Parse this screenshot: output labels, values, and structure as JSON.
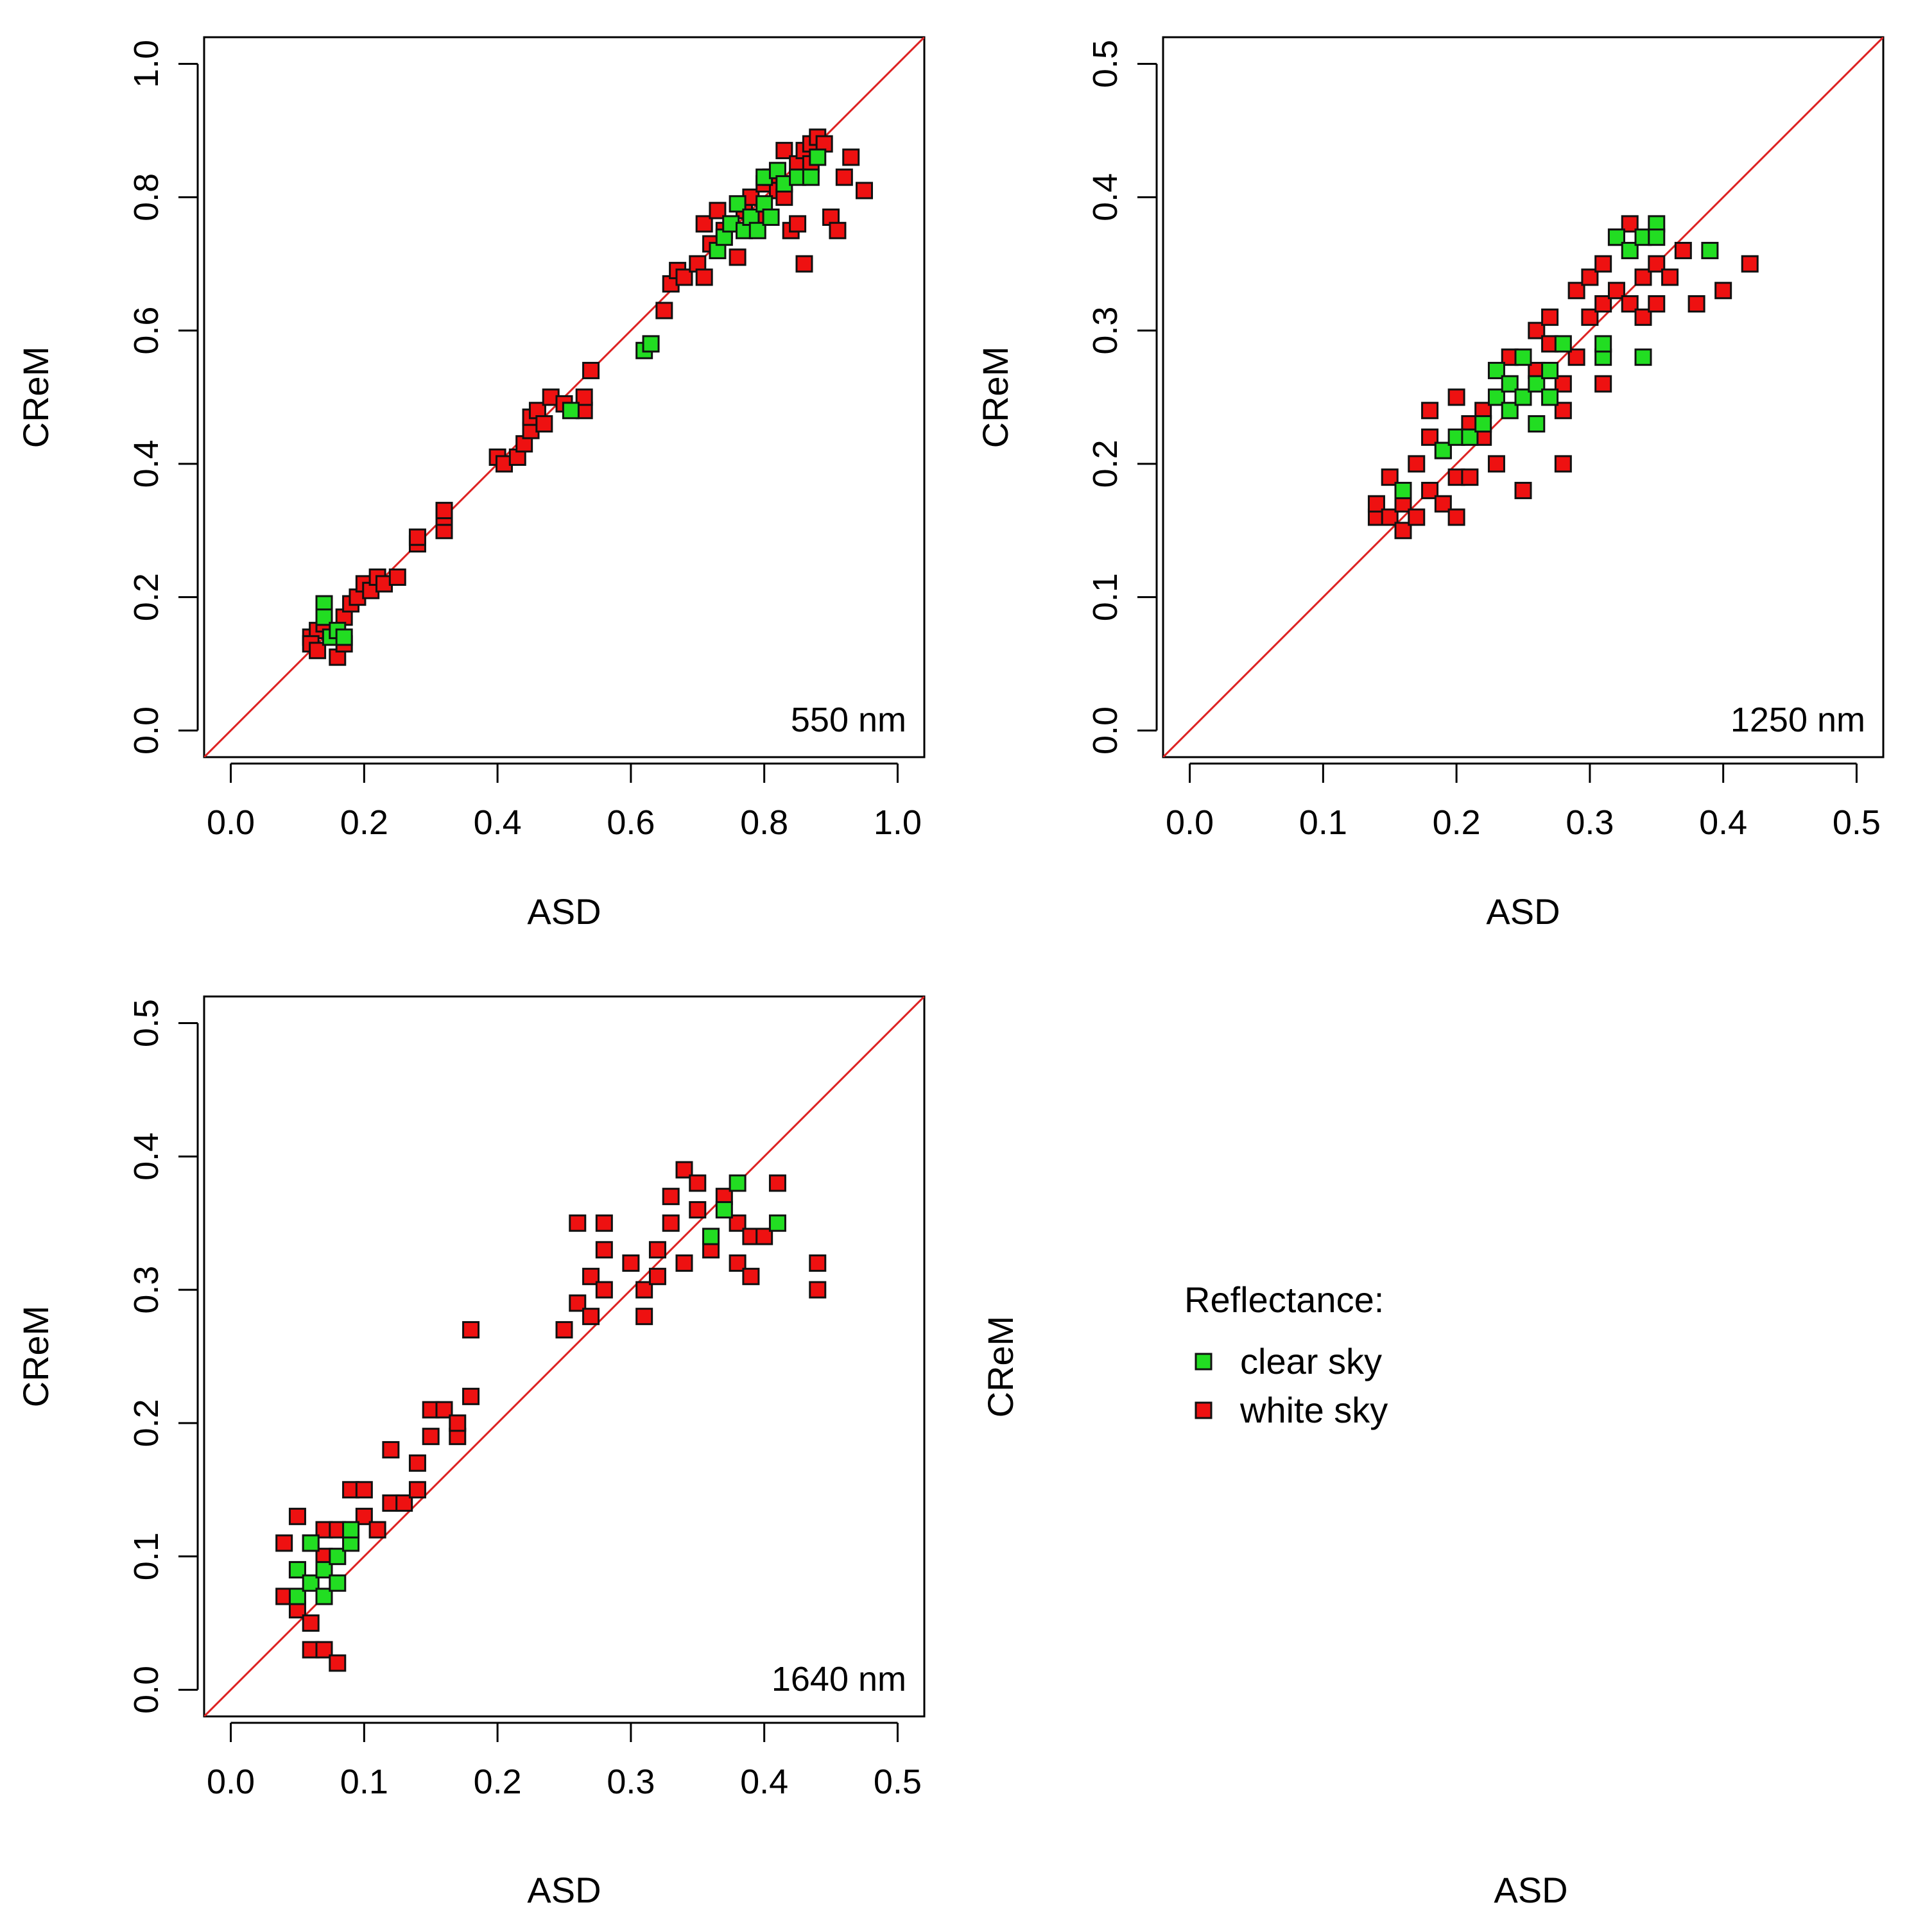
{
  "colors": {
    "clear_sky": "#22dd22",
    "white_sky": "#ee1111",
    "identity_line": "#dd2222",
    "marker_edge": "#111111"
  },
  "legend": {
    "title": "Reflectance:",
    "items": [
      {
        "label": "clear sky",
        "color": "#22dd22"
      },
      {
        "label": "white sky",
        "color": "#ee1111"
      }
    ]
  },
  "empty_panel": {
    "xlabel": "ASD",
    "ylabel": "CReM"
  },
  "chart_data": [
    {
      "type": "scatter",
      "panel_label": "550 nm",
      "xlabel": "ASD",
      "ylabel": "CReM",
      "xlim": [
        -0.04,
        1.04
      ],
      "ylim": [
        -0.04,
        1.04
      ],
      "xticks": [
        0.0,
        0.2,
        0.4,
        0.6,
        0.8,
        1.0
      ],
      "yticks": [
        0.0,
        0.2,
        0.4,
        0.6,
        0.8,
        1.0
      ],
      "tick_labels": [
        "0.0",
        "0.2",
        "0.4",
        "0.6",
        "0.8",
        "1.0"
      ],
      "identity_line": true,
      "series": [
        {
          "name": "white sky",
          "points": [
            [
              0.12,
              0.14
            ],
            [
              0.13,
              0.15
            ],
            [
              0.12,
              0.13
            ],
            [
              0.14,
              0.16
            ],
            [
              0.13,
              0.12
            ],
            [
              0.15,
              0.14
            ],
            [
              0.16,
              0.11
            ],
            [
              0.17,
              0.13
            ],
            [
              0.17,
              0.17
            ],
            [
              0.18,
              0.19
            ],
            [
              0.19,
              0.2
            ],
            [
              0.2,
              0.22
            ],
            [
              0.21,
              0.21
            ],
            [
              0.22,
              0.23
            ],
            [
              0.23,
              0.22
            ],
            [
              0.25,
              0.23
            ],
            [
              0.28,
              0.28
            ],
            [
              0.28,
              0.29
            ],
            [
              0.32,
              0.3
            ],
            [
              0.32,
              0.32
            ],
            [
              0.32,
              0.33
            ],
            [
              0.4,
              0.41
            ],
            [
              0.41,
              0.4
            ],
            [
              0.43,
              0.41
            ],
            [
              0.44,
              0.43
            ],
            [
              0.45,
              0.45
            ],
            [
              0.45,
              0.47
            ],
            [
              0.46,
              0.48
            ],
            [
              0.47,
              0.46
            ],
            [
              0.48,
              0.5
            ],
            [
              0.5,
              0.49
            ],
            [
              0.53,
              0.48
            ],
            [
              0.53,
              0.5
            ],
            [
              0.54,
              0.54
            ],
            [
              0.65,
              0.63
            ],
            [
              0.66,
              0.67
            ],
            [
              0.67,
              0.69
            ],
            [
              0.68,
              0.68
            ],
            [
              0.7,
              0.7
            ],
            [
              0.71,
              0.68
            ],
            [
              0.71,
              0.76
            ],
            [
              0.72,
              0.73
            ],
            [
              0.73,
              0.78
            ],
            [
              0.74,
              0.75
            ],
            [
              0.76,
              0.71
            ],
            [
              0.77,
              0.78
            ],
            [
              0.78,
              0.8
            ],
            [
              0.79,
              0.77
            ],
            [
              0.8,
              0.82
            ],
            [
              0.81,
              0.83
            ],
            [
              0.82,
              0.81
            ],
            [
              0.83,
              0.87
            ],
            [
              0.83,
              0.8
            ],
            [
              0.84,
              0.75
            ],
            [
              0.85,
              0.76
            ],
            [
              0.85,
              0.85
            ],
            [
              0.86,
              0.87
            ],
            [
              0.87,
              0.88
            ],
            [
              0.87,
              0.85
            ],
            [
              0.88,
              0.89
            ],
            [
              0.89,
              0.88
            ],
            [
              0.86,
              0.7
            ],
            [
              0.9,
              0.77
            ],
            [
              0.91,
              0.75
            ],
            [
              0.92,
              0.83
            ],
            [
              0.93,
              0.86
            ],
            [
              0.95,
              0.81
            ]
          ]
        },
        {
          "name": "clear sky",
          "points": [
            [
              0.14,
              0.19
            ],
            [
              0.14,
              0.17
            ],
            [
              0.15,
              0.14
            ],
            [
              0.16,
              0.15
            ],
            [
              0.17,
              0.14
            ],
            [
              0.51,
              0.48
            ],
            [
              0.62,
              0.57
            ],
            [
              0.63,
              0.58
            ],
            [
              0.73,
              0.72
            ],
            [
              0.74,
              0.74
            ],
            [
              0.75,
              0.76
            ],
            [
              0.76,
              0.79
            ],
            [
              0.77,
              0.75
            ],
            [
              0.78,
              0.77
            ],
            [
              0.79,
              0.75
            ],
            [
              0.8,
              0.79
            ],
            [
              0.8,
              0.83
            ],
            [
              0.81,
              0.77
            ],
            [
              0.82,
              0.84
            ],
            [
              0.83,
              0.82
            ],
            [
              0.85,
              0.83
            ],
            [
              0.87,
              0.83
            ],
            [
              0.88,
              0.86
            ]
          ]
        }
      ]
    },
    {
      "type": "scatter",
      "panel_label": "1250 nm",
      "xlabel": "ASD",
      "ylabel": "CReM",
      "xlim": [
        -0.02,
        0.52
      ],
      "ylim": [
        -0.02,
        0.52
      ],
      "xticks": [
        0.0,
        0.1,
        0.2,
        0.3,
        0.4,
        0.5
      ],
      "yticks": [
        0.0,
        0.1,
        0.2,
        0.3,
        0.4,
        0.5
      ],
      "tick_labels": [
        "0.0",
        "0.1",
        "0.2",
        "0.3",
        "0.4",
        "0.5"
      ],
      "identity_line": true,
      "series": [
        {
          "name": "white sky",
          "points": [
            [
              0.14,
              0.16
            ],
            [
              0.14,
              0.17
            ],
            [
              0.15,
              0.16
            ],
            [
              0.15,
              0.19
            ],
            [
              0.16,
              0.17
            ],
            [
              0.16,
              0.15
            ],
            [
              0.17,
              0.16
            ],
            [
              0.17,
              0.2
            ],
            [
              0.18,
              0.22
            ],
            [
              0.18,
              0.18
            ],
            [
              0.18,
              0.24
            ],
            [
              0.19,
              0.17
            ],
            [
              0.19,
              0.21
            ],
            [
              0.2,
              0.25
            ],
            [
              0.2,
              0.16
            ],
            [
              0.2,
              0.19
            ],
            [
              0.21,
              0.23
            ],
            [
              0.21,
              0.19
            ],
            [
              0.22,
              0.22
            ],
            [
              0.22,
              0.24
            ],
            [
              0.23,
              0.2
            ],
            [
              0.24,
              0.28
            ],
            [
              0.25,
              0.18
            ],
            [
              0.25,
              0.25
            ],
            [
              0.26,
              0.3
            ],
            [
              0.26,
              0.27
            ],
            [
              0.27,
              0.31
            ],
            [
              0.27,
              0.29
            ],
            [
              0.28,
              0.26
            ],
            [
              0.28,
              0.2
            ],
            [
              0.28,
              0.24
            ],
            [
              0.29,
              0.33
            ],
            [
              0.29,
              0.28
            ],
            [
              0.3,
              0.34
            ],
            [
              0.3,
              0.31
            ],
            [
              0.31,
              0.32
            ],
            [
              0.31,
              0.35
            ],
            [
              0.31,
              0.26
            ],
            [
              0.32,
              0.33
            ],
            [
              0.32,
              0.37
            ],
            [
              0.33,
              0.32
            ],
            [
              0.33,
              0.38
            ],
            [
              0.34,
              0.34
            ],
            [
              0.34,
              0.31
            ],
            [
              0.35,
              0.35
            ],
            [
              0.35,
              0.32
            ],
            [
              0.36,
              0.34
            ],
            [
              0.37,
              0.36
            ],
            [
              0.38,
              0.32
            ],
            [
              0.4,
              0.33
            ],
            [
              0.42,
              0.35
            ]
          ]
        },
        {
          "name": "clear sky",
          "points": [
            [
              0.16,
              0.18
            ],
            [
              0.19,
              0.21
            ],
            [
              0.2,
              0.22
            ],
            [
              0.21,
              0.22
            ],
            [
              0.22,
              0.23
            ],
            [
              0.23,
              0.25
            ],
            [
              0.23,
              0.27
            ],
            [
              0.24,
              0.26
            ],
            [
              0.24,
              0.24
            ],
            [
              0.25,
              0.28
            ],
            [
              0.25,
              0.25
            ],
            [
              0.26,
              0.26
            ],
            [
              0.26,
              0.23
            ],
            [
              0.27,
              0.27
            ],
            [
              0.27,
              0.25
            ],
            [
              0.28,
              0.29
            ],
            [
              0.31,
              0.28
            ],
            [
              0.31,
              0.29
            ],
            [
              0.32,
              0.37
            ],
            [
              0.33,
              0.36
            ],
            [
              0.34,
              0.37
            ],
            [
              0.34,
              0.28
            ],
            [
              0.35,
              0.38
            ],
            [
              0.35,
              0.37
            ],
            [
              0.39,
              0.36
            ]
          ]
        }
      ]
    },
    {
      "type": "scatter",
      "panel_label": "1640 nm",
      "xlabel": "ASD",
      "ylabel": "CReM",
      "xlim": [
        -0.02,
        0.52
      ],
      "ylim": [
        -0.02,
        0.52
      ],
      "xticks": [
        0.0,
        0.1,
        0.2,
        0.3,
        0.4,
        0.5
      ],
      "yticks": [
        0.0,
        0.1,
        0.2,
        0.3,
        0.4,
        0.5
      ],
      "tick_labels": [
        "0.0",
        "0.1",
        "0.2",
        "0.3",
        "0.4",
        "0.5"
      ],
      "identity_line": true,
      "series": [
        {
          "name": "white sky",
          "points": [
            [
              0.04,
              0.11
            ],
            [
              0.04,
              0.07
            ],
            [
              0.05,
              0.06
            ],
            [
              0.05,
              0.13
            ],
            [
              0.05,
              0.09
            ],
            [
              0.06,
              0.05
            ],
            [
              0.06,
              0.11
            ],
            [
              0.06,
              0.03
            ],
            [
              0.07,
              0.12
            ],
            [
              0.07,
              0.1
            ],
            [
              0.07,
              0.03
            ],
            [
              0.08,
              0.02
            ],
            [
              0.08,
              0.12
            ],
            [
              0.09,
              0.15
            ],
            [
              0.1,
              0.13
            ],
            [
              0.1,
              0.15
            ],
            [
              0.11,
              0.12
            ],
            [
              0.12,
              0.14
            ],
            [
              0.12,
              0.18
            ],
            [
              0.13,
              0.14
            ],
            [
              0.14,
              0.15
            ],
            [
              0.14,
              0.17
            ],
            [
              0.15,
              0.19
            ],
            [
              0.15,
              0.21
            ],
            [
              0.16,
              0.21
            ],
            [
              0.17,
              0.19
            ],
            [
              0.17,
              0.2
            ],
            [
              0.18,
              0.22
            ],
            [
              0.18,
              0.27
            ],
            [
              0.25,
              0.27
            ],
            [
              0.26,
              0.29
            ],
            [
              0.26,
              0.35
            ],
            [
              0.27,
              0.28
            ],
            [
              0.27,
              0.31
            ],
            [
              0.28,
              0.35
            ],
            [
              0.28,
              0.33
            ],
            [
              0.28,
              0.3
            ],
            [
              0.3,
              0.32
            ],
            [
              0.31,
              0.28
            ],
            [
              0.31,
              0.3
            ],
            [
              0.32,
              0.33
            ],
            [
              0.32,
              0.31
            ],
            [
              0.33,
              0.35
            ],
            [
              0.33,
              0.37
            ],
            [
              0.34,
              0.39
            ],
            [
              0.34,
              0.32
            ],
            [
              0.35,
              0.36
            ],
            [
              0.35,
              0.38
            ],
            [
              0.36,
              0.33
            ],
            [
              0.37,
              0.37
            ],
            [
              0.38,
              0.35
            ],
            [
              0.38,
              0.32
            ],
            [
              0.39,
              0.31
            ],
            [
              0.39,
              0.34
            ],
            [
              0.4,
              0.34
            ],
            [
              0.41,
              0.38
            ],
            [
              0.44,
              0.3
            ],
            [
              0.44,
              0.32
            ]
          ]
        },
        {
          "name": "clear sky",
          "points": [
            [
              0.05,
              0.07
            ],
            [
              0.05,
              0.09
            ],
            [
              0.06,
              0.11
            ],
            [
              0.06,
              0.08
            ],
            [
              0.07,
              0.09
            ],
            [
              0.07,
              0.07
            ],
            [
              0.08,
              0.1
            ],
            [
              0.08,
              0.08
            ],
            [
              0.09,
              0.11
            ],
            [
              0.09,
              0.12
            ],
            [
              0.36,
              0.34
            ],
            [
              0.37,
              0.36
            ],
            [
              0.38,
              0.38
            ],
            [
              0.41,
              0.35
            ]
          ]
        }
      ]
    }
  ]
}
